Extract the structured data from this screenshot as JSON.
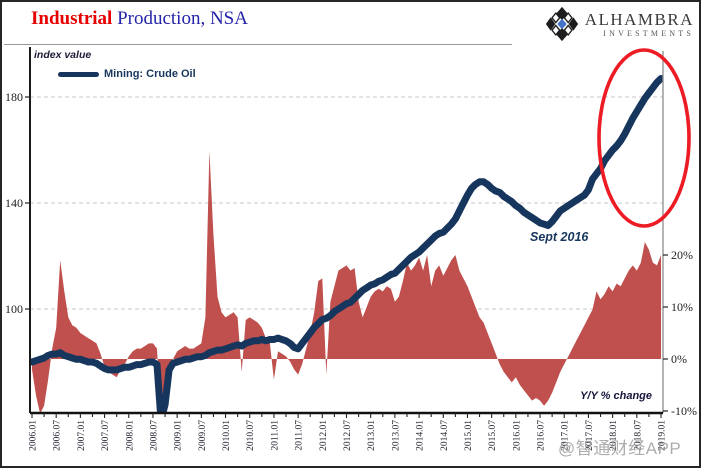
{
  "header": {
    "title_red": "Industrial",
    "title_rest": " Production, NSA",
    "logo_name": "ALHAMBRA",
    "logo_sub": "INVESTMENTS"
  },
  "chart": {
    "left_axis_note": "index value",
    "legend_label": "Mining: Crude Oil",
    "annotation_label": "Sept 2016",
    "right_axis_note": "Y/Y % change",
    "left_tick_labels": [
      "180",
      "140",
      "100"
    ],
    "right_tick_labels": [
      "20%",
      "10%",
      "0%",
      "-10%"
    ],
    "x_tick_labels": [
      "2006.01",
      "2006.07",
      "2007.01",
      "2007.07",
      "2008.01",
      "2008.07",
      "2009.01",
      "2009.07",
      "2010.01",
      "2010.07",
      "2011.01",
      "2011.07",
      "2012.01",
      "2012.07",
      "2013.01",
      "2013.07",
      "2014.01",
      "2014.07",
      "2015.01",
      "2015.07",
      "2016.01",
      "2016.07",
      "2017.01",
      "2017.07",
      "2018.01",
      "2018.07",
      "2019.01"
    ]
  },
  "watermark": "@智通财经APP",
  "colors": {
    "line": "#17365d",
    "area": "#c0504d",
    "ellipse": "#ec1b24",
    "title_red": "#e60000",
    "title_blue": "#2424a8",
    "gridline": "#c8c8c8",
    "axis": "#1a1a1a"
  },
  "chart_data": {
    "type": "combo",
    "title": "Industrial Production, NSA",
    "x_start": "2006.01",
    "x_end": "2019.01",
    "frequency": "monthly",
    "left_axis": {
      "label": "index value",
      "ticks": [
        180,
        140,
        100
      ],
      "visible_range": [
        61,
        199
      ]
    },
    "right_axis": {
      "label": "Y/Y % change",
      "ticks": [
        20,
        10,
        0,
        -10
      ],
      "unit": "%"
    },
    "grid": "dashed horizontal at left-axis ticks",
    "legend_position": "top-left inside plot",
    "annotations": [
      {
        "text": "Sept 2016",
        "attached_to": "line trough ~131 at 2016.09"
      },
      {
        "shape": "red ellipse",
        "around": "line rise 2017.10-2019.01"
      }
    ],
    "series": [
      {
        "name": "Mining: Crude Oil",
        "type": "line",
        "axis": "left",
        "values": [
          80,
          80.5,
          81,
          81.5,
          82.5,
          83,
          83,
          83.5,
          82.5,
          82,
          81.5,
          81,
          81,
          80.5,
          80,
          80,
          79.5,
          78.5,
          77.5,
          77,
          77,
          77,
          77.5,
          78,
          78,
          78.5,
          79,
          79,
          79.5,
          80,
          80,
          79,
          58,
          64,
          77,
          79.5,
          80,
          80.5,
          81,
          81,
          81.5,
          82,
          82,
          82.5,
          83.5,
          84,
          84.5,
          84.5,
          85,
          85.5,
          86,
          86.5,
          86,
          87,
          87.5,
          88,
          88,
          88.5,
          88,
          88.5,
          88.5,
          89,
          88.5,
          88,
          87,
          85.5,
          85,
          87,
          89,
          91,
          93,
          94.5,
          96,
          96.5,
          97.5,
          99,
          100,
          101,
          102,
          102.5,
          104,
          105.5,
          107,
          108,
          109,
          109.5,
          110.5,
          111,
          112,
          113,
          113.5,
          115,
          116.5,
          118,
          119.5,
          120.5,
          121.5,
          123,
          124.5,
          126,
          127.5,
          128.5,
          129,
          130.5,
          132,
          134,
          137,
          140,
          143,
          145.5,
          147,
          148,
          148,
          147,
          145.5,
          144.5,
          144,
          142.5,
          141.5,
          140.5,
          139,
          138,
          136.5,
          135.5,
          134.5,
          133.5,
          132.5,
          132,
          131.5,
          133,
          135,
          137,
          138,
          139,
          140,
          141,
          142,
          143,
          145,
          149,
          151,
          153,
          156,
          158,
          160,
          161.5,
          163.5,
          166,
          169,
          172,
          174.5,
          177,
          179.5,
          181.5,
          183.5,
          185.5,
          187
        ]
      },
      {
        "name": "Y/Y % change",
        "type": "area",
        "axis": "right",
        "values": [
          -2,
          -7,
          -10.5,
          -9,
          -4,
          2,
          6,
          19,
          13,
          8,
          6.5,
          6,
          5,
          4.5,
          4,
          3.5,
          3,
          1,
          -1.5,
          -2.5,
          -3,
          -3.5,
          -2,
          -1,
          0.5,
          1.5,
          2,
          2,
          2.5,
          3,
          3,
          2,
          -12,
          -11,
          -2,
          0,
          1.5,
          2,
          2.5,
          2,
          2,
          2.5,
          3,
          8,
          40,
          24,
          12,
          9,
          8,
          8.5,
          9,
          8,
          -2.5,
          7.5,
          8,
          7.5,
          7,
          6,
          4,
          3,
          -4,
          1.5,
          1,
          0.5,
          -0.5,
          -2,
          -3,
          -1,
          2,
          5,
          9,
          15,
          15.5,
          -3,
          11,
          14,
          17,
          17.5,
          18,
          17,
          17.5,
          11,
          8,
          10,
          12,
          13,
          13.5,
          13,
          14,
          13.5,
          11,
          12,
          15,
          18.5,
          17,
          18,
          19.5,
          17,
          20,
          14,
          17,
          18,
          16,
          17.5,
          19,
          20,
          17,
          15.5,
          14,
          12,
          10,
          8,
          7,
          5,
          3,
          1,
          -1,
          -2.5,
          -3.5,
          -4.5,
          -3.5,
          -5,
          -6,
          -7,
          -8,
          -7.5,
          -8,
          -9,
          -8,
          -6.5,
          -4.5,
          -2.5,
          -1,
          0.5,
          2,
          3.5,
          5,
          6.5,
          8,
          9.5,
          13,
          11.5,
          12.5,
          14,
          13,
          14.5,
          14,
          15.5,
          17,
          18,
          17,
          18.5,
          22.5,
          21,
          18.5,
          18,
          20
        ]
      }
    ]
  }
}
